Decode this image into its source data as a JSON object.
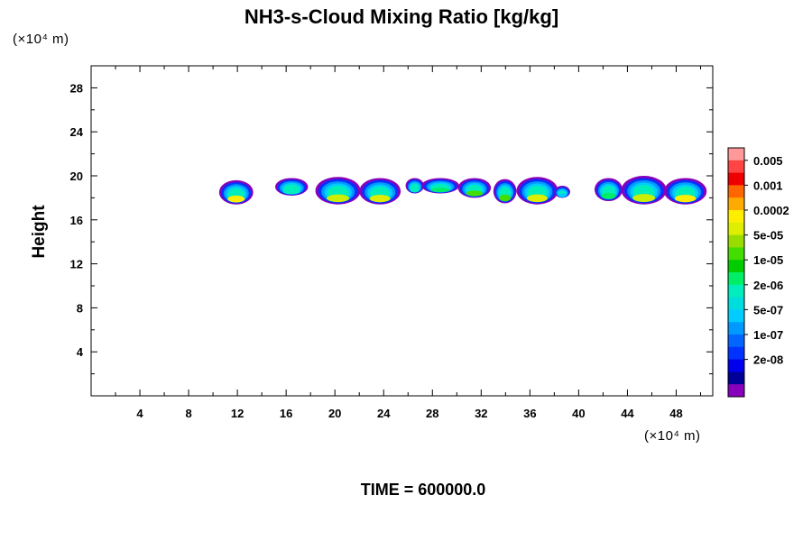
{
  "chart_data": {
    "type": "heatmap",
    "title": "NH3-s-Cloud Mixing Ratio [kg/kg]",
    "ylabel": "Height",
    "x_units": "(×10⁴ m)",
    "y_units": "(×10⁴ m)",
    "x_ticks": [
      "4",
      "8",
      "12",
      "16",
      "20",
      "24",
      "28",
      "32",
      "36",
      "40",
      "44",
      "48"
    ],
    "y_ticks": [
      "4",
      "8",
      "12",
      "16",
      "20",
      "24",
      "28"
    ],
    "xlim": [
      0,
      51
    ],
    "ylim": [
      0,
      30
    ],
    "colorbar": {
      "labels": [
        "0.005",
        "0.001",
        "0.0002",
        "5e-05",
        "1e-05",
        "2e-06",
        "5e-07",
        "1e-07",
        "2e-08"
      ],
      "colors": [
        "#ff9999",
        "#ff4444",
        "#ee0000",
        "#ff6600",
        "#ffaa00",
        "#ffee00",
        "#ddee00",
        "#99dd00",
        "#44dd00",
        "#00cc00",
        "#00ee66",
        "#00eebb",
        "#00dddd",
        "#00ccff",
        "#0099ff",
        "#0066ff",
        "#0033ff",
        "#0000ee",
        "#000099",
        "#8800bb"
      ]
    },
    "cloud_cells": [
      {
        "x0": 10.5,
        "x1": 13.3,
        "yb": 17.4,
        "yt": 19.6,
        "core": "#ffee00"
      },
      {
        "x0": 15.1,
        "x1": 17.8,
        "yb": 18.2,
        "yt": 19.8,
        "core": "#00eebb"
      },
      {
        "x0": 18.4,
        "x1": 22.1,
        "yb": 17.4,
        "yt": 19.9,
        "core": "#ccee00"
      },
      {
        "x0": 22.0,
        "x1": 25.4,
        "yb": 17.4,
        "yt": 19.8,
        "core": "#ddee00"
      },
      {
        "x0": 25.8,
        "x1": 27.3,
        "yb": 18.4,
        "yt": 19.8,
        "core": "#00eebb"
      },
      {
        "x0": 27.1,
        "x1": 30.2,
        "yb": 18.4,
        "yt": 19.8,
        "core": "#00ee66"
      },
      {
        "x0": 30.1,
        "x1": 32.8,
        "yb": 18.0,
        "yt": 19.8,
        "core": "#44dd00"
      },
      {
        "x0": 33.0,
        "x1": 34.9,
        "yb": 17.5,
        "yt": 19.7,
        "core": "#44dd00"
      },
      {
        "x0": 34.9,
        "x1": 38.3,
        "yb": 17.4,
        "yt": 19.9,
        "core": "#ddee00"
      },
      {
        "x0": 38.0,
        "x1": 39.3,
        "yb": 18.0,
        "yt": 19.1,
        "core": "#00ccff"
      },
      {
        "x0": 41.3,
        "x1": 43.6,
        "yb": 17.7,
        "yt": 19.8,
        "core": "#00ee66"
      },
      {
        "x0": 43.5,
        "x1": 47.2,
        "yb": 17.4,
        "yt": 20.0,
        "core": "#ccee00"
      },
      {
        "x0": 47.0,
        "x1": 50.5,
        "yb": 17.4,
        "yt": 19.8,
        "core": "#ffee00"
      }
    ],
    "grid": false,
    "legend": "right colorbar"
  },
  "time_label": "TIME = 600000.0"
}
